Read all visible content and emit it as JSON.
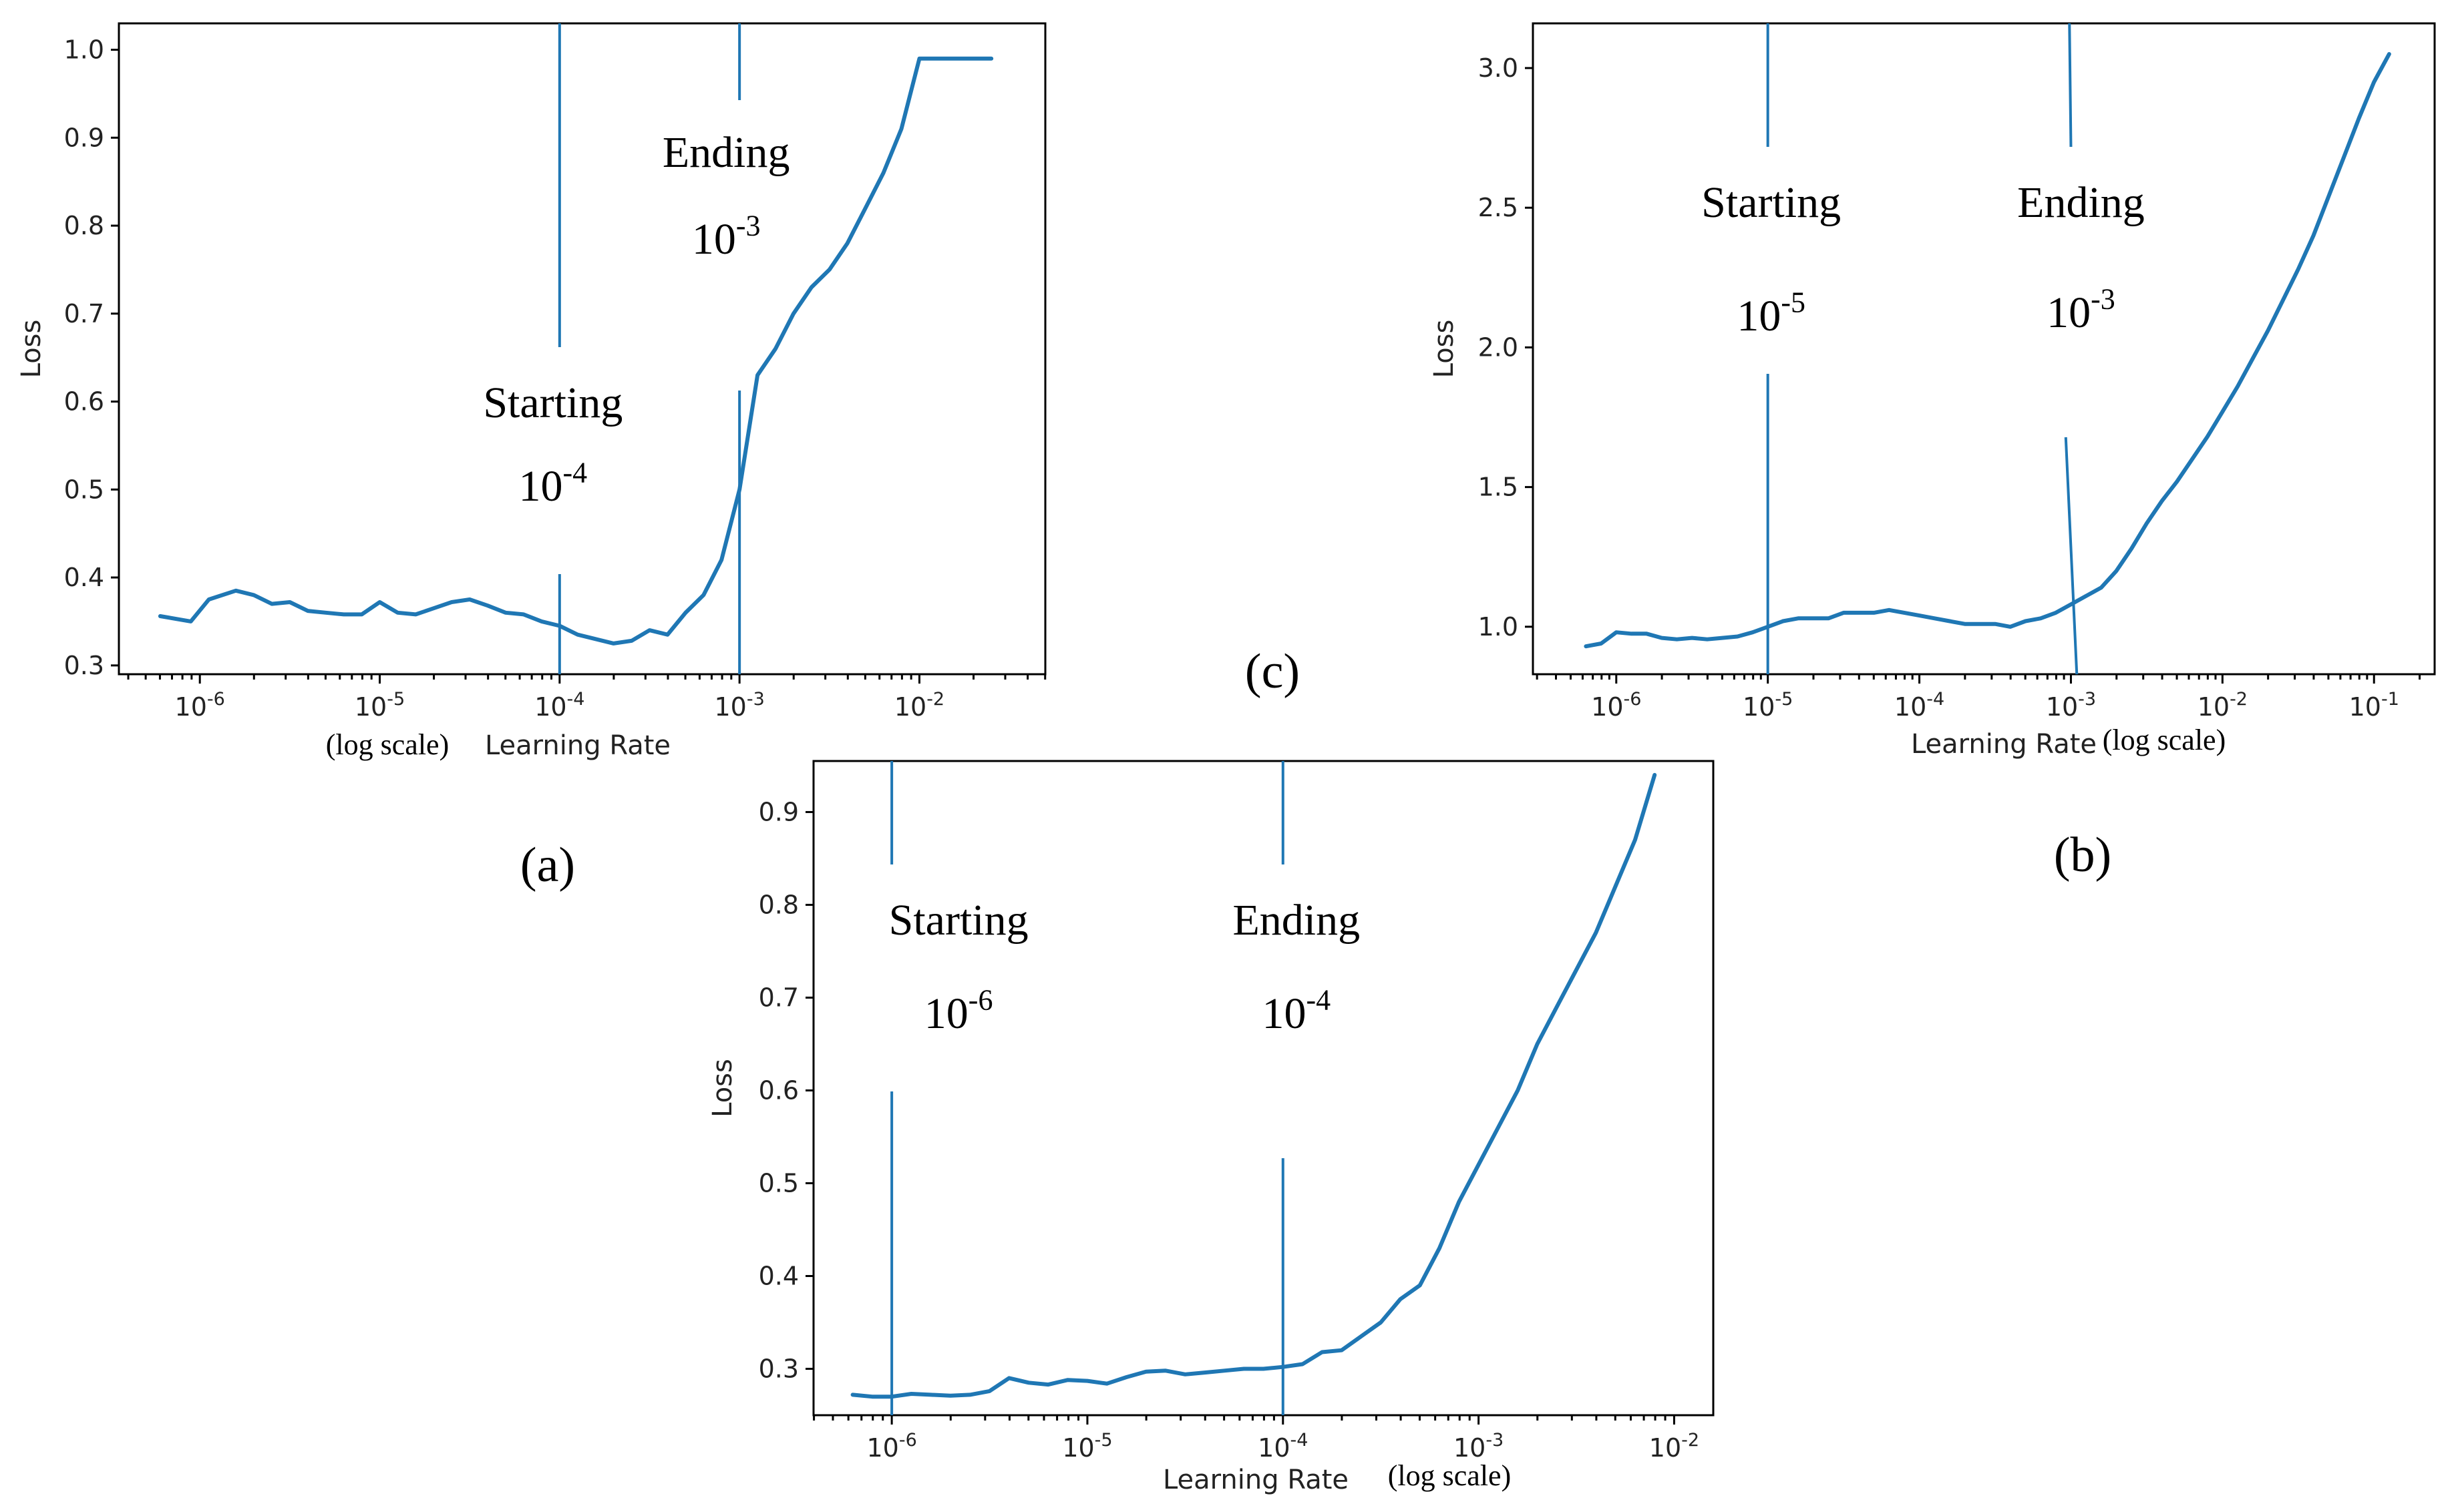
{
  "chart_data": [
    {
      "id": "a",
      "type": "line",
      "panel_label": "(a)",
      "xscale": "log",
      "xlim": [
        -6.45,
        -1.3
      ],
      "ylim": [
        0.29,
        1.03
      ],
      "xlabel": "Learning Rate",
      "xlabel_note": "(log scale)",
      "ylabel": "Loss",
      "xticks": [
        {
          "v": -6,
          "base": "10",
          "exp": "-6"
        },
        {
          "v": -5,
          "base": "10",
          "exp": "-5"
        },
        {
          "v": -4,
          "base": "10",
          "exp": "-4"
        },
        {
          "v": -3,
          "base": "10",
          "exp": "-3"
        },
        {
          "v": -2,
          "base": "10",
          "exp": "-2"
        }
      ],
      "yticks": [
        {
          "v": 0.3,
          "label": "0.3"
        },
        {
          "v": 0.4,
          "label": "0.4"
        },
        {
          "v": 0.5,
          "label": "0.5"
        },
        {
          "v": 0.6,
          "label": "0.6"
        },
        {
          "v": 0.7,
          "label": "0.7"
        },
        {
          "v": 0.8,
          "label": "0.8"
        },
        {
          "v": 0.9,
          "label": "0.9"
        },
        {
          "v": 1.0,
          "label": "1.0"
        }
      ],
      "x": [
        -6.22,
        -6.05,
        -5.95,
        -5.8,
        -5.7,
        -5.6,
        -5.5,
        -5.4,
        -5.3,
        -5.2,
        -5.1,
        -5.0,
        -4.9,
        -4.8,
        -4.7,
        -4.6,
        -4.5,
        -4.4,
        -4.3,
        -4.2,
        -4.1,
        -4.0,
        -3.9,
        -3.8,
        -3.7,
        -3.6,
        -3.5,
        -3.4,
        -3.3,
        -3.2,
        -3.1,
        -3.0,
        -2.9,
        -2.8,
        -2.7,
        -2.6,
        -2.5,
        -2.4,
        -2.3,
        -2.2,
        -2.1,
        -2.0,
        -1.9,
        -1.8,
        -1.7,
        -1.6
      ],
      "values": [
        0.356,
        0.35,
        0.375,
        0.385,
        0.38,
        0.37,
        0.372,
        0.362,
        0.36,
        0.358,
        0.358,
        0.372,
        0.36,
        0.358,
        0.365,
        0.372,
        0.375,
        0.368,
        0.36,
        0.358,
        0.35,
        0.345,
        0.335,
        0.33,
        0.325,
        0.328,
        0.34,
        0.335,
        0.36,
        0.38,
        0.42,
        0.5,
        0.63,
        0.66,
        0.7,
        0.73,
        0.75,
        0.78,
        0.82,
        0.86,
        0.91,
        0.99,
        0.99,
        0.99,
        0.99,
        0.99
      ],
      "markers": [
        {
          "x": -4,
          "title": "Starting",
          "base": "10",
          "exp": "-4"
        },
        {
          "x": -3,
          "title": "Ending",
          "base": "10",
          "exp": "-3"
        }
      ]
    },
    {
      "id": "b",
      "type": "line",
      "panel_label": "(b)",
      "xscale": "log",
      "xlim": [
        -6.55,
        -0.6
      ],
      "ylim": [
        0.83,
        3.16
      ],
      "xlabel": "Learning Rate",
      "xlabel_note": "(log scale)",
      "ylabel": "Loss",
      "xticks": [
        {
          "v": -6,
          "base": "10",
          "exp": "-6"
        },
        {
          "v": -5,
          "base": "10",
          "exp": "-5"
        },
        {
          "v": -4,
          "base": "10",
          "exp": "-4"
        },
        {
          "v": -3,
          "base": "10",
          "exp": "-3"
        },
        {
          "v": -2,
          "base": "10",
          "exp": "-2"
        },
        {
          "v": -1,
          "base": "10",
          "exp": "-1"
        }
      ],
      "yticks": [
        {
          "v": 1.0,
          "label": "1.0"
        },
        {
          "v": 1.5,
          "label": "1.5"
        },
        {
          "v": 2.0,
          "label": "2.0"
        },
        {
          "v": 2.5,
          "label": "2.5"
        },
        {
          "v": 3.0,
          "label": "3.0"
        }
      ],
      "x": [
        -6.2,
        -6.1,
        -6.0,
        -5.9,
        -5.8,
        -5.7,
        -5.6,
        -5.5,
        -5.4,
        -5.3,
        -5.2,
        -5.1,
        -5.0,
        -4.9,
        -4.8,
        -4.7,
        -4.6,
        -4.5,
        -4.4,
        -4.3,
        -4.2,
        -4.1,
        -4.0,
        -3.9,
        -3.8,
        -3.7,
        -3.6,
        -3.5,
        -3.4,
        -3.3,
        -3.2,
        -3.1,
        -3.0,
        -2.9,
        -2.8,
        -2.7,
        -2.6,
        -2.5,
        -2.4,
        -2.3,
        -2.2,
        -2.1,
        -2.0,
        -1.9,
        -1.8,
        -1.7,
        -1.6,
        -1.5,
        -1.4,
        -1.3,
        -1.2,
        -1.1,
        -1.0,
        -0.9
      ],
      "values": [
        0.93,
        0.94,
        0.98,
        0.975,
        0.975,
        0.96,
        0.955,
        0.96,
        0.955,
        0.96,
        0.965,
        0.98,
        1.0,
        1.02,
        1.03,
        1.03,
        1.03,
        1.05,
        1.05,
        1.05,
        1.06,
        1.05,
        1.04,
        1.03,
        1.02,
        1.01,
        1.01,
        1.01,
        1.0,
        1.02,
        1.03,
        1.05,
        1.08,
        1.11,
        1.14,
        1.2,
        1.28,
        1.37,
        1.45,
        1.52,
        1.6,
        1.68,
        1.77,
        1.86,
        1.96,
        2.06,
        2.17,
        2.28,
        2.4,
        2.54,
        2.68,
        2.82,
        2.95,
        3.05
      ],
      "markers": [
        {
          "x": -5,
          "title": "Starting",
          "base": "10",
          "exp": "-5"
        },
        {
          "x": -3,
          "title": "Ending",
          "base": "10",
          "exp": "-3"
        }
      ]
    },
    {
      "id": "c",
      "type": "line",
      "panel_label": "(c)",
      "xscale": "log",
      "xlim": [
        -6.4,
        -1.8
      ],
      "ylim": [
        0.25,
        0.955
      ],
      "xlabel": "Learning Rate",
      "xlabel_note": "(log scale)",
      "ylabel": "Loss",
      "xticks": [
        {
          "v": -6,
          "base": "10",
          "exp": "-6"
        },
        {
          "v": -5,
          "base": "10",
          "exp": "-5"
        },
        {
          "v": -4,
          "base": "10",
          "exp": "-4"
        },
        {
          "v": -3,
          "base": "10",
          "exp": "-3"
        },
        {
          "v": -2,
          "base": "10",
          "exp": "-2"
        }
      ],
      "yticks": [
        {
          "v": 0.3,
          "label": "0.3"
        },
        {
          "v": 0.4,
          "label": "0.4"
        },
        {
          "v": 0.5,
          "label": "0.5"
        },
        {
          "v": 0.6,
          "label": "0.6"
        },
        {
          "v": 0.7,
          "label": "0.7"
        },
        {
          "v": 0.8,
          "label": "0.8"
        },
        {
          "v": 0.9,
          "label": "0.9"
        }
      ],
      "x": [
        -6.2,
        -6.1,
        -6.0,
        -5.9,
        -5.8,
        -5.7,
        -5.6,
        -5.5,
        -5.4,
        -5.3,
        -5.2,
        -5.1,
        -5.0,
        -4.9,
        -4.8,
        -4.7,
        -4.6,
        -4.5,
        -4.4,
        -4.3,
        -4.2,
        -4.1,
        -4.0,
        -3.9,
        -3.8,
        -3.7,
        -3.6,
        -3.5,
        -3.4,
        -3.3,
        -3.2,
        -3.1,
        -3.0,
        -2.9,
        -2.8,
        -2.7,
        -2.6,
        -2.5,
        -2.4,
        -2.3,
        -2.2,
        -2.1
      ],
      "values": [
        0.272,
        0.27,
        0.27,
        0.273,
        0.272,
        0.271,
        0.272,
        0.276,
        0.29,
        0.285,
        0.283,
        0.288,
        0.287,
        0.284,
        0.291,
        0.297,
        0.298,
        0.294,
        0.296,
        0.298,
        0.3,
        0.3,
        0.302,
        0.305,
        0.318,
        0.32,
        0.335,
        0.35,
        0.375,
        0.39,
        0.43,
        0.48,
        0.52,
        0.56,
        0.6,
        0.65,
        0.69,
        0.73,
        0.77,
        0.82,
        0.87,
        0.94
      ],
      "markers": [
        {
          "x": -6,
          "title": "Starting",
          "base": "10",
          "exp": "-6"
        },
        {
          "x": -4,
          "title": "Ending",
          "base": "10",
          "exp": "-4"
        }
      ]
    }
  ]
}
